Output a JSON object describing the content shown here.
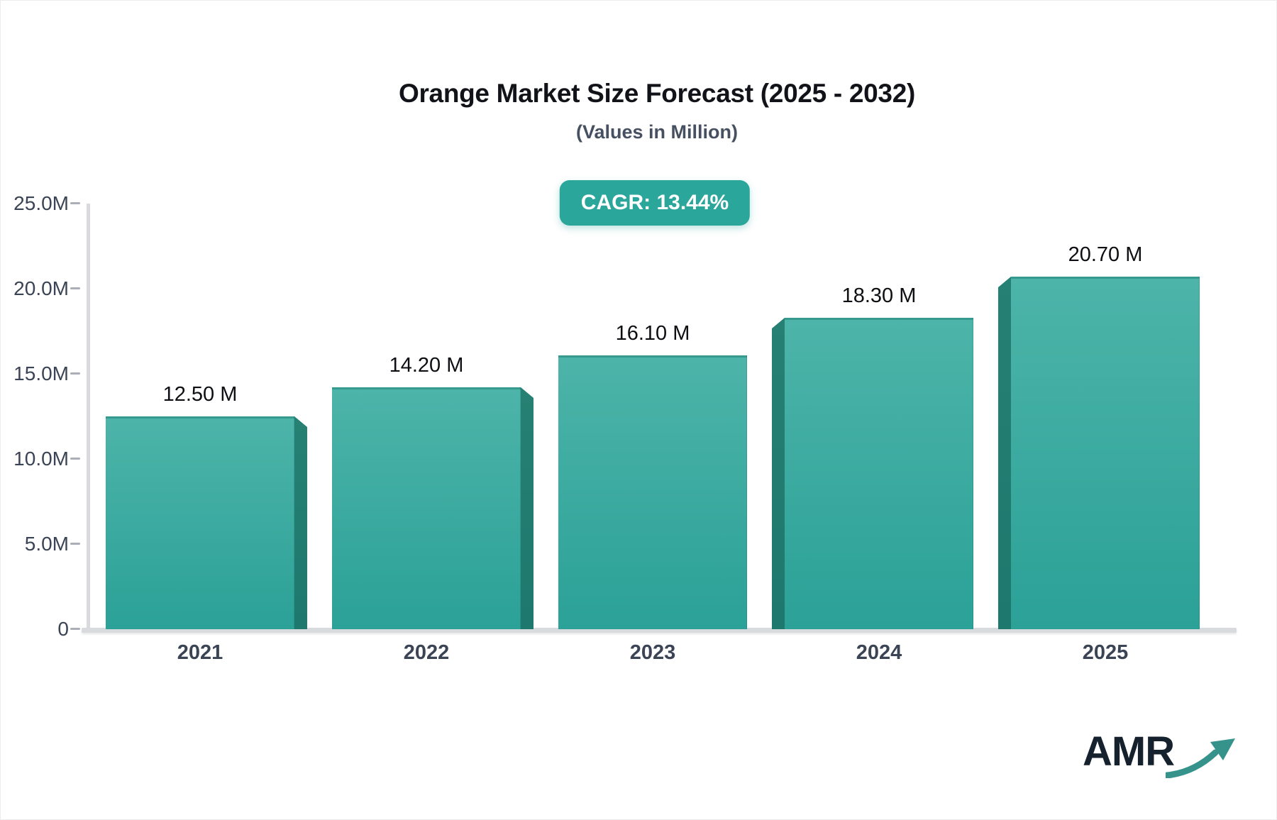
{
  "header": {
    "title": "Orange Market Size Forecast (2025 - 2032)",
    "subtitle": "(Values in Million)",
    "cagr_label": "CAGR: 13.44%"
  },
  "chart_data": {
    "type": "bar",
    "title": "Orange Market Size Forecast (2025 - 2032)",
    "subtitle": "(Values in Million)",
    "categories": [
      "2021",
      "2022",
      "2023",
      "2024",
      "2025"
    ],
    "values": [
      12.5,
      14.2,
      16.1,
      18.3,
      20.7
    ],
    "value_labels": [
      "12.50 M",
      "14.20 M",
      "16.10 M",
      "18.30 M",
      "20.70 M"
    ],
    "unit": "Million",
    "y_ticks": [
      "25.0M",
      "20.0M",
      "15.0M",
      "10.0M",
      "5.0M",
      "0"
    ],
    "y_tick_values": [
      25,
      20,
      15,
      10,
      5,
      0
    ],
    "ylim": [
      0,
      25
    ],
    "xlabel": "",
    "ylabel": "",
    "grid": false,
    "legend": false,
    "annotations": [
      "CAGR: 13.44%"
    ],
    "bar_style": "3d-teal-gradient"
  },
  "colors": {
    "bar_face_top": "#4db4a9",
    "bar_face_bottom": "#2ba197",
    "bar_side": "#217c71",
    "badge_bg": "#2ba69b",
    "badge_text": "#ffffff",
    "axis": "#d9dadd",
    "tick_dash": "#a9aeb7",
    "axis_label": "#3b4454",
    "value_label": "#0d0f12",
    "title": "#111318",
    "subtitle": "#475061",
    "logo_text": "#15212d",
    "logo_arrow": "#35938c"
  },
  "logo": {
    "text": "AMR"
  }
}
